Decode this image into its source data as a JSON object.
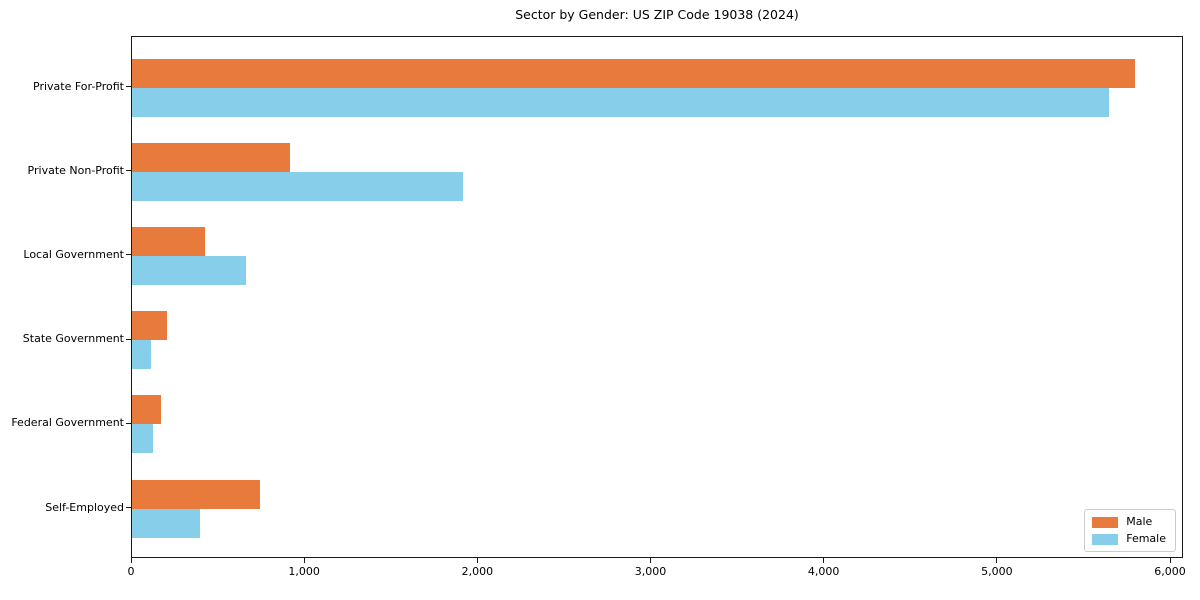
{
  "title": "Sector by Gender: US ZIP Code 19038 (2024)",
  "chart_data": {
    "type": "bar",
    "orientation": "horizontal",
    "title": "Sector by Gender: US ZIP Code 19038 (2024)",
    "categories": [
      "Private For-Profit",
      "Private Non-Profit",
      "Local Government",
      "State Government",
      "Federal Government",
      "Self-Employed"
    ],
    "series": [
      {
        "name": "Male",
        "color": "#e87a3c",
        "values": [
          5790,
          915,
          420,
          200,
          165,
          740
        ]
      },
      {
        "name": "Female",
        "color": "#87ceeb",
        "values": [
          5640,
          1910,
          660,
          110,
          120,
          395
        ]
      }
    ],
    "xlabel": "",
    "ylabel": "",
    "xlim": [
      0,
      6075
    ],
    "xticks": [
      0,
      1000,
      2000,
      3000,
      4000,
      5000,
      6000
    ],
    "xtick_labels": [
      "0",
      "1,000",
      "2,000",
      "3,000",
      "4,000",
      "5,000",
      "6,000"
    ],
    "legend": {
      "position": "lower right",
      "entries": [
        "Male",
        "Female"
      ]
    },
    "grid": false,
    "background": "#ffffff"
  }
}
